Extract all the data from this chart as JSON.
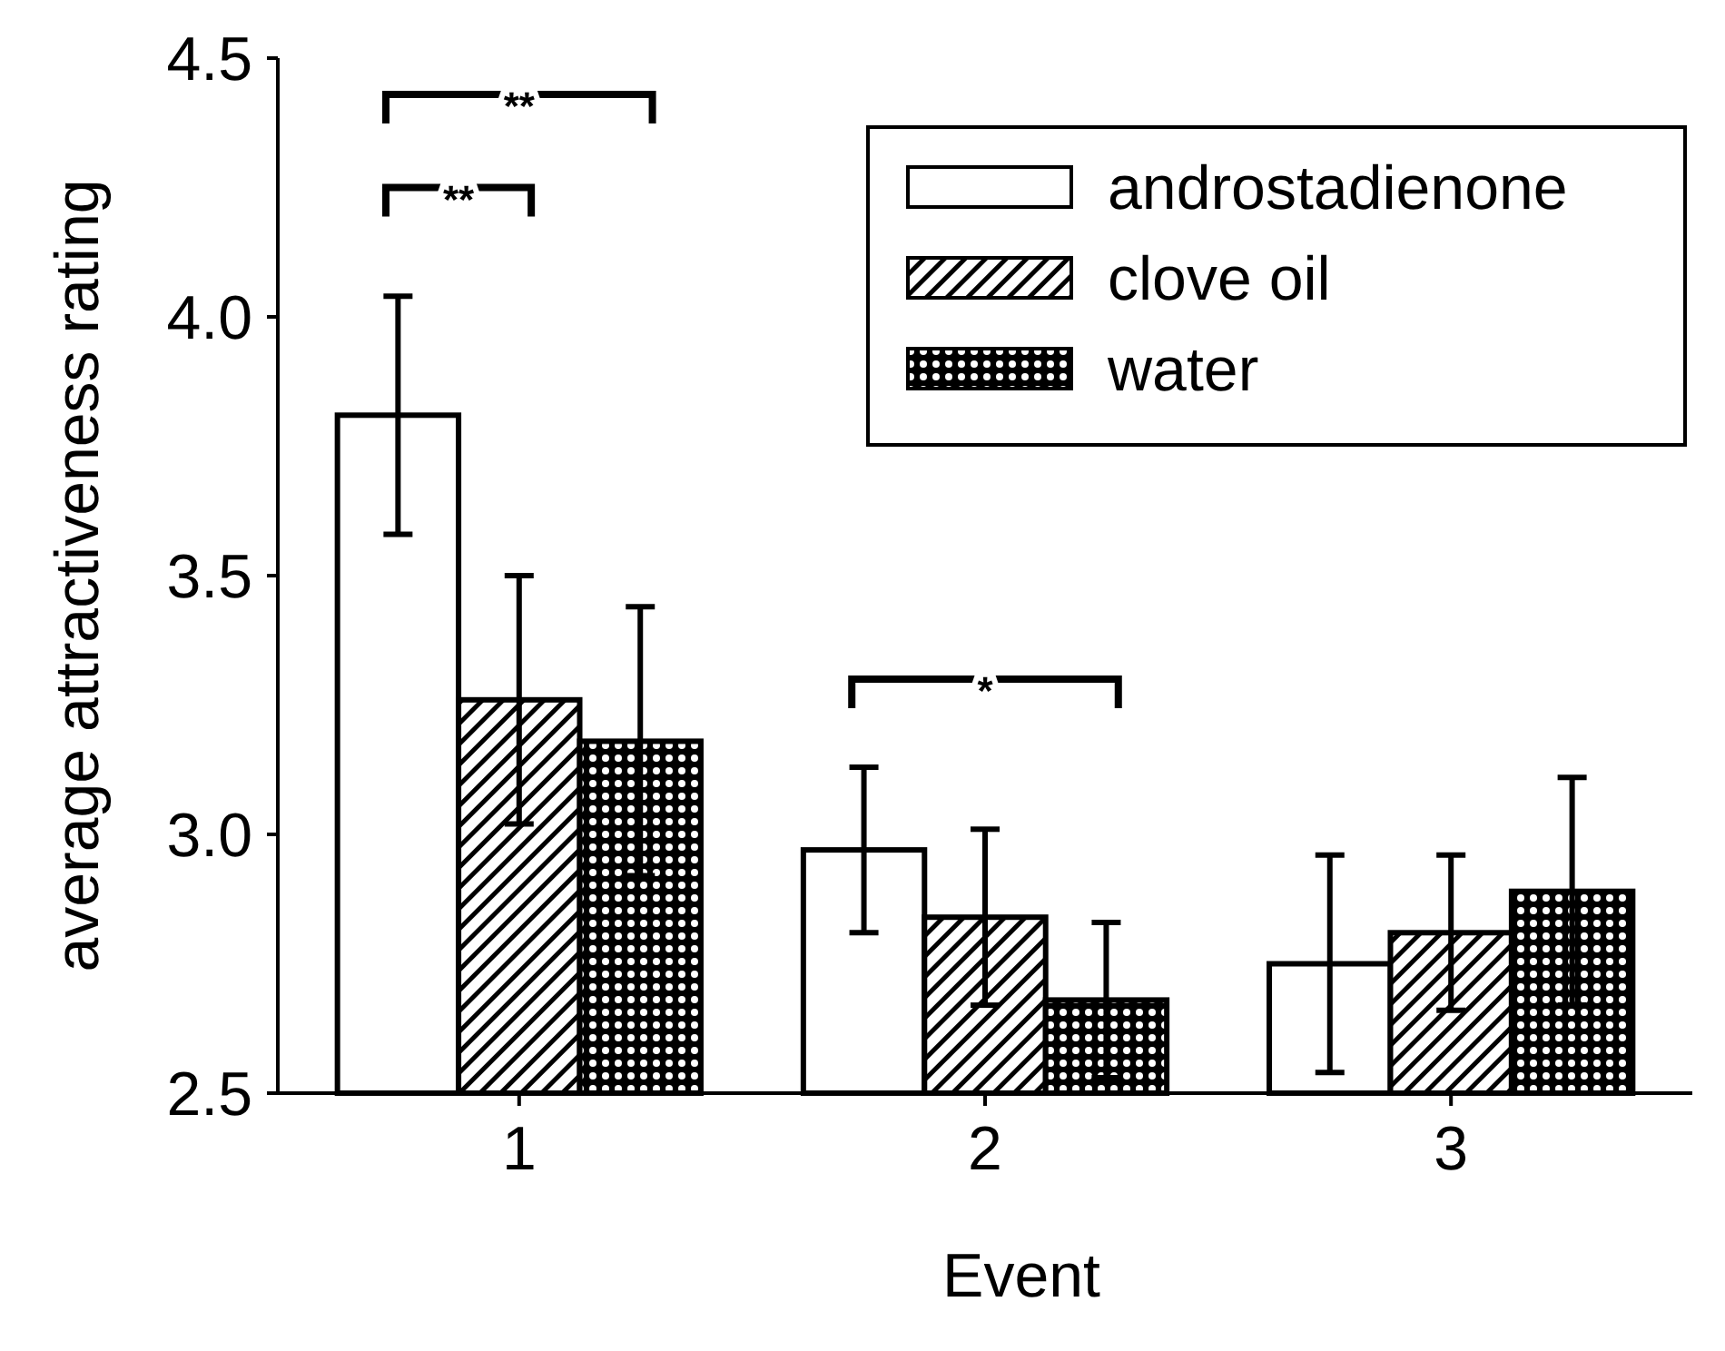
{
  "chart_data": {
    "type": "bar",
    "xlabel": "Event",
    "ylabel": "average attractiveness rating",
    "categories": [
      "1",
      "2",
      "3"
    ],
    "series": [
      {
        "name": "androstadienone",
        "color": "#000000",
        "values": [
          3.81,
          2.97,
          2.75
        ],
        "errors": [
          0.23,
          0.16,
          0.21
        ]
      },
      {
        "name": "clove oil",
        "color": "#000000",
        "values": [
          3.26,
          2.84,
          2.81
        ],
        "errors": [
          0.24,
          0.17,
          0.15
        ]
      },
      {
        "name": "water",
        "color": "#000000",
        "values": [
          3.18,
          2.68,
          2.89
        ],
        "errors": [
          0.26,
          0.15,
          0.22
        ]
      }
    ],
    "ylim": [
      2.5,
      4.5
    ],
    "yticks": [
      {
        "value": 2.5,
        "label": "2.5"
      },
      {
        "value": 3,
        "label": "3.0"
      },
      {
        "value": 3.5,
        "label": "3.5"
      },
      {
        "value": 4,
        "label": "4.0"
      },
      {
        "value": 4.5,
        "label": "4.5"
      }
    ],
    "grid": false,
    "legend": "top right",
    "annotations": [
      "**",
      "**",
      "*"
    ]
  }
}
